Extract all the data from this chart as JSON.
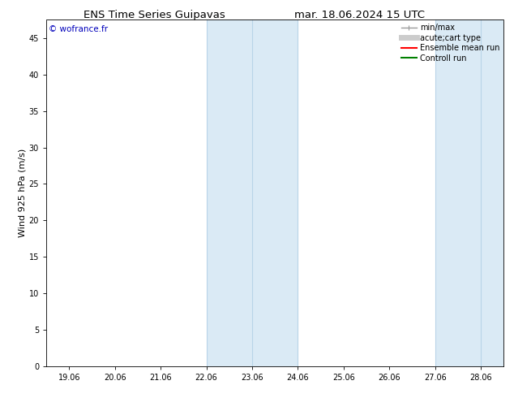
{
  "title_left": "ENS Time Series Guipavas",
  "title_right": "mar. 18.06.2024 15 UTC",
  "ylabel": "Wind 925 hPa (m/s)",
  "watermark": "© wofrance.fr",
  "watermark_color": "#0000bb",
  "xlim": [
    -0.5,
    9.5
  ],
  "ylim": [
    0,
    47.5
  ],
  "yticks": [
    0,
    5,
    10,
    15,
    20,
    25,
    30,
    35,
    40,
    45
  ],
  "xtick_labels": [
    "19.06",
    "20.06",
    "21.06",
    "22.06",
    "23.06",
    "24.06",
    "25.06",
    "26.06",
    "27.06",
    "28.06"
  ],
  "xtick_positions": [
    0,
    1,
    2,
    3,
    4,
    5,
    6,
    7,
    8,
    9
  ],
  "bg_color": "#ffffff",
  "plot_bg_color": "#ffffff",
  "shaded_bands": [
    {
      "x_start": 3.0,
      "x_end": 5.0,
      "color": "#daeaf5"
    },
    {
      "x_start": 8.0,
      "x_end": 9.5,
      "color": "#daeaf5"
    }
  ],
  "shaded_band_vlines": [
    {
      "x": 3.0
    },
    {
      "x": 4.0
    },
    {
      "x": 5.0
    },
    {
      "x": 8.0
    },
    {
      "x": 9.0
    }
  ],
  "vline_color": "#b8d4e8",
  "legend_entries": [
    {
      "label": "min/max",
      "color": "#999999",
      "lw": 1.0,
      "style": "minmax"
    },
    {
      "label": "acute;cart type",
      "color": "#cccccc",
      "lw": 5,
      "style": "solid"
    },
    {
      "label": "Ensemble mean run",
      "color": "#ff0000",
      "lw": 1.5,
      "style": "solid"
    },
    {
      "label": "Controll run",
      "color": "#008000",
      "lw": 1.5,
      "style": "solid"
    }
  ],
  "title_fontsize": 9.5,
  "tick_fontsize": 7,
  "ylabel_fontsize": 8,
  "legend_fontsize": 7,
  "watermark_fontsize": 7.5
}
